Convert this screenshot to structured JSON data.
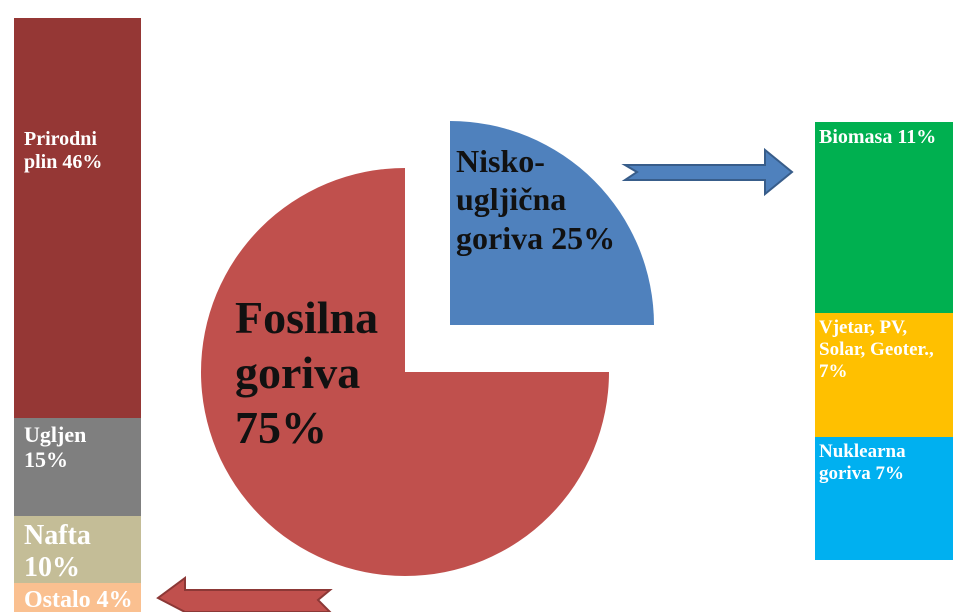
{
  "chart_data": [
    {
      "type": "pie",
      "categories": [
        "Fosilna goriva",
        "Nisko-ugljična goriva"
      ],
      "values": [
        75,
        25
      ],
      "value_labels": [
        "75%",
        "25%"
      ],
      "colors": [
        "#c0504d",
        "#4f81bd"
      ]
    },
    {
      "type": "stacked-bar",
      "categories": [
        "Prirodni plin",
        "Ugljen",
        "Nafta",
        "Ostalo"
      ],
      "values": [
        46,
        15,
        10,
        4
      ],
      "value_labels": [
        "46%",
        "15%",
        "10%",
        "4%"
      ],
      "colors": [
        "#953735",
        "#7f7f7f",
        "#c4bd97",
        "#fac090"
      ]
    },
    {
      "type": "stacked-bar",
      "categories": [
        "Biomasa",
        "Vjetar, PV, Solar, Geoter.,",
        "Nuklearna goriva"
      ],
      "values": [
        11,
        7,
        7
      ],
      "value_labels": [
        "11%",
        "7%",
        "7%"
      ],
      "colors": [
        "#00b050",
        "#ffc000",
        "#00b0f0"
      ]
    }
  ]
}
